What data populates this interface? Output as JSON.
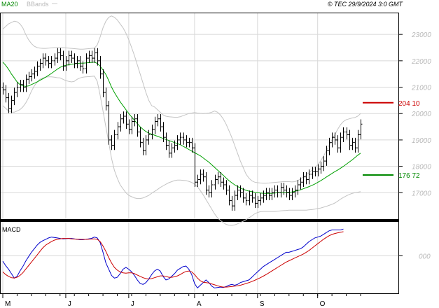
{
  "chart_data": [
    {
      "type": "ohlc",
      "panel": "price",
      "legend": [
        "MA20",
        "BBands"
      ],
      "credit": "© TEC 29/9/2024 3:0 GMT",
      "y_ticks": [
        "23000",
        "22000",
        "21000",
        "20000",
        "19000",
        "18000",
        "17000"
      ],
      "ylim": [
        16000,
        23800
      ],
      "x_ticks": [
        "M",
        "J",
        "J",
        "A",
        "S",
        "O"
      ],
      "x_tick_index": [
        0,
        22,
        44,
        67,
        89,
        110
      ],
      "levels": [
        {
          "label": "204 10",
          "value": 20410,
          "color": "#cc0000"
        },
        {
          "label": "176 72",
          "value": 17672,
          "color": "#008800"
        }
      ],
      "closes": [
        20900,
        20600,
        20200,
        20500,
        20800,
        21000,
        21100,
        21000,
        21300,
        21400,
        21500,
        21600,
        21800,
        21900,
        22100,
        22000,
        21900,
        22000,
        22100,
        22300,
        22200,
        21800,
        22000,
        22200,
        22100,
        21900,
        22000,
        21800,
        21700,
        22100,
        22200,
        22100,
        22300,
        22000,
        21500,
        20800,
        20300,
        19000,
        18800,
        19200,
        19500,
        19800,
        19900,
        19600,
        19400,
        19700,
        19800,
        19300,
        18900,
        18600,
        19000,
        19200,
        19400,
        19700,
        19800,
        19500,
        19100,
        18800,
        18500,
        18700,
        18800,
        19000,
        19100,
        19000,
        18900,
        18900,
        18700,
        17400,
        17500,
        17700,
        17600,
        17100,
        17000,
        17300,
        17500,
        17600,
        17400,
        17300,
        17100,
        16700,
        16500,
        16900,
        17100,
        17000,
        16800,
        16700,
        16900,
        16800,
        16600,
        16700,
        16800,
        16900,
        17000,
        16900,
        17000,
        17100,
        17000,
        17200,
        17100,
        17000,
        16900,
        17000,
        17100,
        17300,
        17400,
        17600,
        17500,
        17700,
        17800,
        17800,
        17900,
        18000,
        18200,
        18600,
        18900,
        19100,
        19000,
        18700,
        19100,
        19300,
        19200,
        18800,
        18900,
        18700,
        19200,
        19600
      ],
      "ma20": [
        21950,
        21830,
        21680,
        21500,
        21350,
        21200,
        21100,
        21050,
        21030,
        21050,
        21100,
        21150,
        21200,
        21260,
        21320,
        21380,
        21450,
        21520,
        21600,
        21680,
        21750,
        21800,
        21830,
        21850,
        21870,
        21880,
        21900,
        21910,
        21910,
        21920,
        21930,
        21940,
        21950,
        21900,
        21800,
        21650,
        21480,
        21250,
        21000,
        20800,
        20620,
        20450,
        20300,
        20150,
        20000,
        19870,
        19750,
        19620,
        19500,
        19400,
        19320,
        19260,
        19220,
        19180,
        19140,
        19100,
        19060,
        19020,
        18980,
        18940,
        18900,
        18860,
        18820,
        18760,
        18700,
        18640,
        18580,
        18520,
        18460,
        18400,
        18320,
        18240,
        18160,
        18060,
        17960,
        17860,
        17760,
        17660,
        17560,
        17460,
        17380,
        17300,
        17240,
        17180,
        17130,
        17090,
        17060,
        17040,
        17020,
        17000,
        16990,
        16980,
        16975,
        16975,
        16980,
        16990,
        17000,
        17005,
        17010,
        17015,
        17020,
        17030,
        17050,
        17080,
        17110,
        17150,
        17190,
        17230,
        17280,
        17330,
        17390,
        17450,
        17520,
        17590,
        17660,
        17730,
        17800,
        17860,
        17930,
        18000,
        18080,
        18160,
        18240,
        18330,
        18420,
        18500
      ],
      "bb_upper": [
        23200,
        23300,
        23400,
        23450,
        23500,
        23480,
        23400,
        23250,
        23000,
        22800,
        22650,
        22550,
        22500,
        22480,
        22470,
        22470,
        22480,
        22490,
        22500,
        22500,
        22500,
        22500,
        22490,
        22480,
        22470,
        22460,
        22450,
        22440,
        22440,
        22450,
        22460,
        22470,
        22480,
        22600,
        22900,
        23250,
        23500,
        23650,
        23700,
        23650,
        23550,
        23400,
        23250,
        23050,
        22800,
        22500,
        22200,
        21850,
        21500,
        21150,
        20800,
        20500,
        20300,
        20250,
        20150,
        20050,
        19950,
        19900,
        19880,
        19870,
        19860,
        19860,
        19880,
        19920,
        19960,
        20000,
        20020,
        20040,
        20020,
        20010,
        20000,
        20010,
        20020,
        20050,
        20100,
        20050,
        19950,
        19800,
        19600,
        19350,
        19100,
        18800,
        18500,
        18200,
        17950,
        17700,
        17550,
        17450,
        17400,
        17380,
        17370,
        17360,
        17360,
        17370,
        17380,
        17390,
        17400,
        17410,
        17420,
        17420,
        17420,
        17410,
        17420,
        17460,
        17520,
        17600,
        17680,
        17760,
        17850,
        17950,
        18050,
        18200,
        18380,
        18580,
        18800,
        19000,
        19200,
        19400,
        19580,
        19700,
        19770,
        19800,
        19830,
        19850,
        19900,
        20000
      ],
      "bb_lower": [
        20300,
        20200,
        20100,
        20050,
        20050,
        20100,
        20150,
        20250,
        20400,
        20600,
        20850,
        21050,
        21200,
        21300,
        21350,
        21380,
        21390,
        21390,
        21380,
        21360,
        21350,
        21300,
        21250,
        21220,
        21200,
        21220,
        21300,
        21350,
        21380,
        21390,
        21400,
        21410,
        21420,
        21220,
        20700,
        20100,
        19500,
        18900,
        18300,
        17850,
        17550,
        17300,
        17150,
        17000,
        16900,
        16850,
        16800,
        16780,
        16780,
        16800,
        16850,
        16900,
        16980,
        17050,
        17120,
        17200,
        17260,
        17320,
        17380,
        17420,
        17460,
        17480,
        17480,
        17470,
        17460,
        17430,
        17390,
        17320,
        17220,
        17080,
        16920,
        16740,
        16560,
        16380,
        16200,
        16050,
        15950,
        15870,
        15800,
        15770,
        15760,
        15780,
        15820,
        15870,
        15920,
        15980,
        16050,
        16120,
        16200,
        16250,
        16280,
        16290,
        16290,
        16290,
        16290,
        16290,
        16300,
        16310,
        16320,
        16330,
        16340,
        16340,
        16340,
        16340,
        16340,
        16340,
        16340,
        16350,
        16360,
        16380,
        16400,
        16420,
        16450,
        16480,
        16520,
        16560,
        16610,
        16680,
        16760,
        16820,
        16880,
        16930,
        16970,
        17000,
        17020,
        17040
      ]
    },
    {
      "type": "line",
      "panel": "macd",
      "title": "MACD",
      "y_ticks": [
        "000"
      ],
      "ylim": [
        -420,
        380
      ],
      "series": [
        {
          "color": "#0000cc",
          "values": [
            -60,
            -110,
            -150,
            -200,
            -250,
            -230,
            -170,
            -120,
            -60,
            -10,
            40,
            80,
            120,
            150,
            170,
            185,
            200,
            210,
            205,
            200,
            195,
            190,
            192,
            195,
            195,
            190,
            185,
            180,
            180,
            185,
            190,
            195,
            210,
            200,
            150,
            40,
            -80,
            -150,
            -220,
            -250,
            -240,
            -200,
            -150,
            -130,
            -150,
            -180,
            -220,
            -270,
            -310,
            -320,
            -300,
            -260,
            -210,
            -170,
            -150,
            -170,
            -230,
            -270,
            -260,
            -230,
            -200,
            -160,
            -140,
            -120,
            -115,
            -150,
            -210,
            -310,
            -360,
            -330,
            -300,
            -270,
            -300,
            -340,
            -360,
            -355,
            -350,
            -355,
            -345,
            -330,
            -320,
            -330,
            -320,
            -300,
            -290,
            -280,
            -270,
            -240,
            -210,
            -180,
            -150,
            -120,
            -100,
            -80,
            -60,
            -40,
            -20,
            0,
            20,
            40,
            40,
            50,
            60,
            70,
            80,
            100,
            130,
            160,
            180,
            200,
            210,
            220,
            240,
            260,
            280,
            290,
            290,
            290,
            290,
            300
          ]
        },
        {
          "color": "#cc0000",
          "values": [
            -180,
            -210,
            -230,
            -245,
            -250,
            -240,
            -220,
            -190,
            -150,
            -110,
            -70,
            -30,
            10,
            50,
            90,
            120,
            140,
            160,
            175,
            185,
            190,
            195,
            195,
            195,
            190,
            188,
            186,
            185,
            184,
            185,
            186,
            188,
            190,
            185,
            160,
            110,
            50,
            -20,
            -80,
            -130,
            -160,
            -180,
            -190,
            -195,
            -190,
            -190,
            -200,
            -215,
            -230,
            -245,
            -255,
            -260,
            -255,
            -245,
            -235,
            -225,
            -225,
            -230,
            -240,
            -240,
            -235,
            -225,
            -210,
            -190,
            -175,
            -170,
            -180,
            -210,
            -250,
            -280,
            -295,
            -300,
            -305,
            -315,
            -325,
            -335,
            -345,
            -350,
            -350,
            -348,
            -345,
            -340,
            -335,
            -330,
            -320,
            -310,
            -300,
            -288,
            -275,
            -260,
            -245,
            -228,
            -210,
            -190,
            -170,
            -150,
            -130,
            -110,
            -90,
            -70,
            -55,
            -40,
            -25,
            -10,
            5,
            20,
            40,
            60,
            85,
            110,
            135,
            160,
            185,
            205,
            225,
            240,
            250,
            258,
            265,
            270
          ]
        }
      ]
    }
  ]
}
